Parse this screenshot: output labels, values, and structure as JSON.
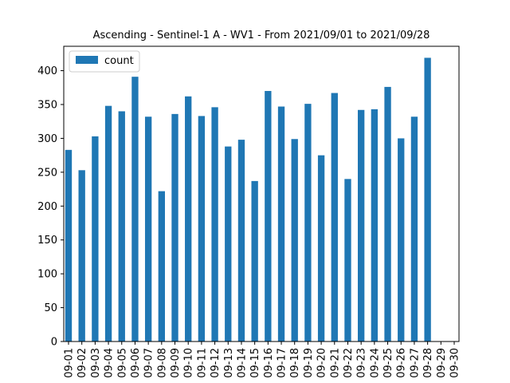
{
  "chart_data": {
    "type": "bar",
    "title": "Ascending - Sentinel-1 A - WV1 - From 2021/09/01 to 2021/09/28",
    "xlabel": "",
    "ylabel": "",
    "ylim": [
      0,
      436
    ],
    "yticks": [
      0,
      50,
      100,
      150,
      200,
      250,
      300,
      350,
      400
    ],
    "categories": [
      "09-01",
      "09-02",
      "09-03",
      "09-04",
      "09-05",
      "09-06",
      "09-07",
      "09-08",
      "09-09",
      "09-10",
      "09-11",
      "09-12",
      "09-13",
      "09-14",
      "09-15",
      "09-16",
      "09-17",
      "09-18",
      "09-19",
      "09-20",
      "09-21",
      "09-22",
      "09-23",
      "09-24",
      "09-25",
      "09-26",
      "09-27",
      "09-28",
      "09-29",
      "09-30"
    ],
    "series": [
      {
        "name": "count",
        "color": "#1f77b4",
        "values": [
          283,
          253,
          303,
          348,
          340,
          391,
          332,
          222,
          336,
          362,
          333,
          346,
          288,
          298,
          237,
          370,
          347,
          299,
          351,
          275,
          367,
          240,
          342,
          343,
          376,
          300,
          332,
          419,
          0,
          0
        ]
      }
    ],
    "legend": {
      "position": "top-left"
    },
    "grid": false
  }
}
